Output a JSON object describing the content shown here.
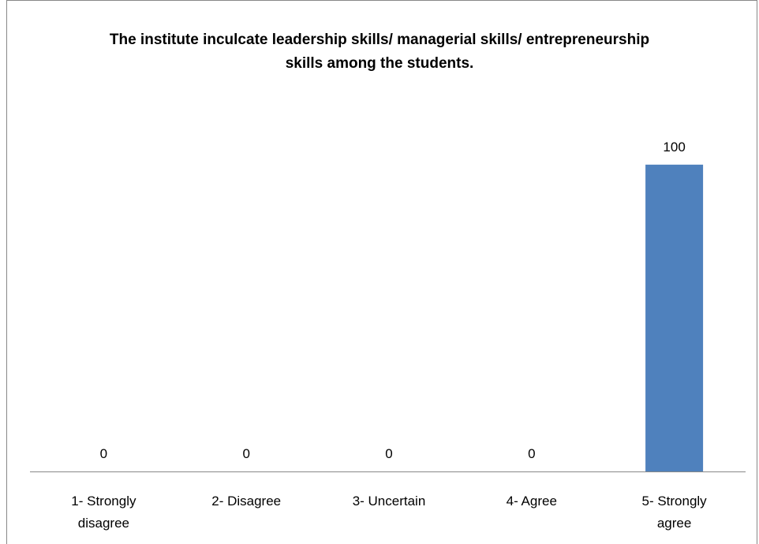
{
  "chart_data": {
    "type": "bar",
    "title": "The institute inculcate leadership skills/ managerial skills/ entrepreneurship skills among the students.",
    "categories": [
      "1- Strongly disagree",
      "2- Disagree",
      "3- Uncertain",
      "4- Agree",
      "5- Strongly agree"
    ],
    "values": [
      0,
      0,
      0,
      0,
      100
    ],
    "color": "#4f81bd",
    "ylim": [
      0,
      120
    ]
  }
}
